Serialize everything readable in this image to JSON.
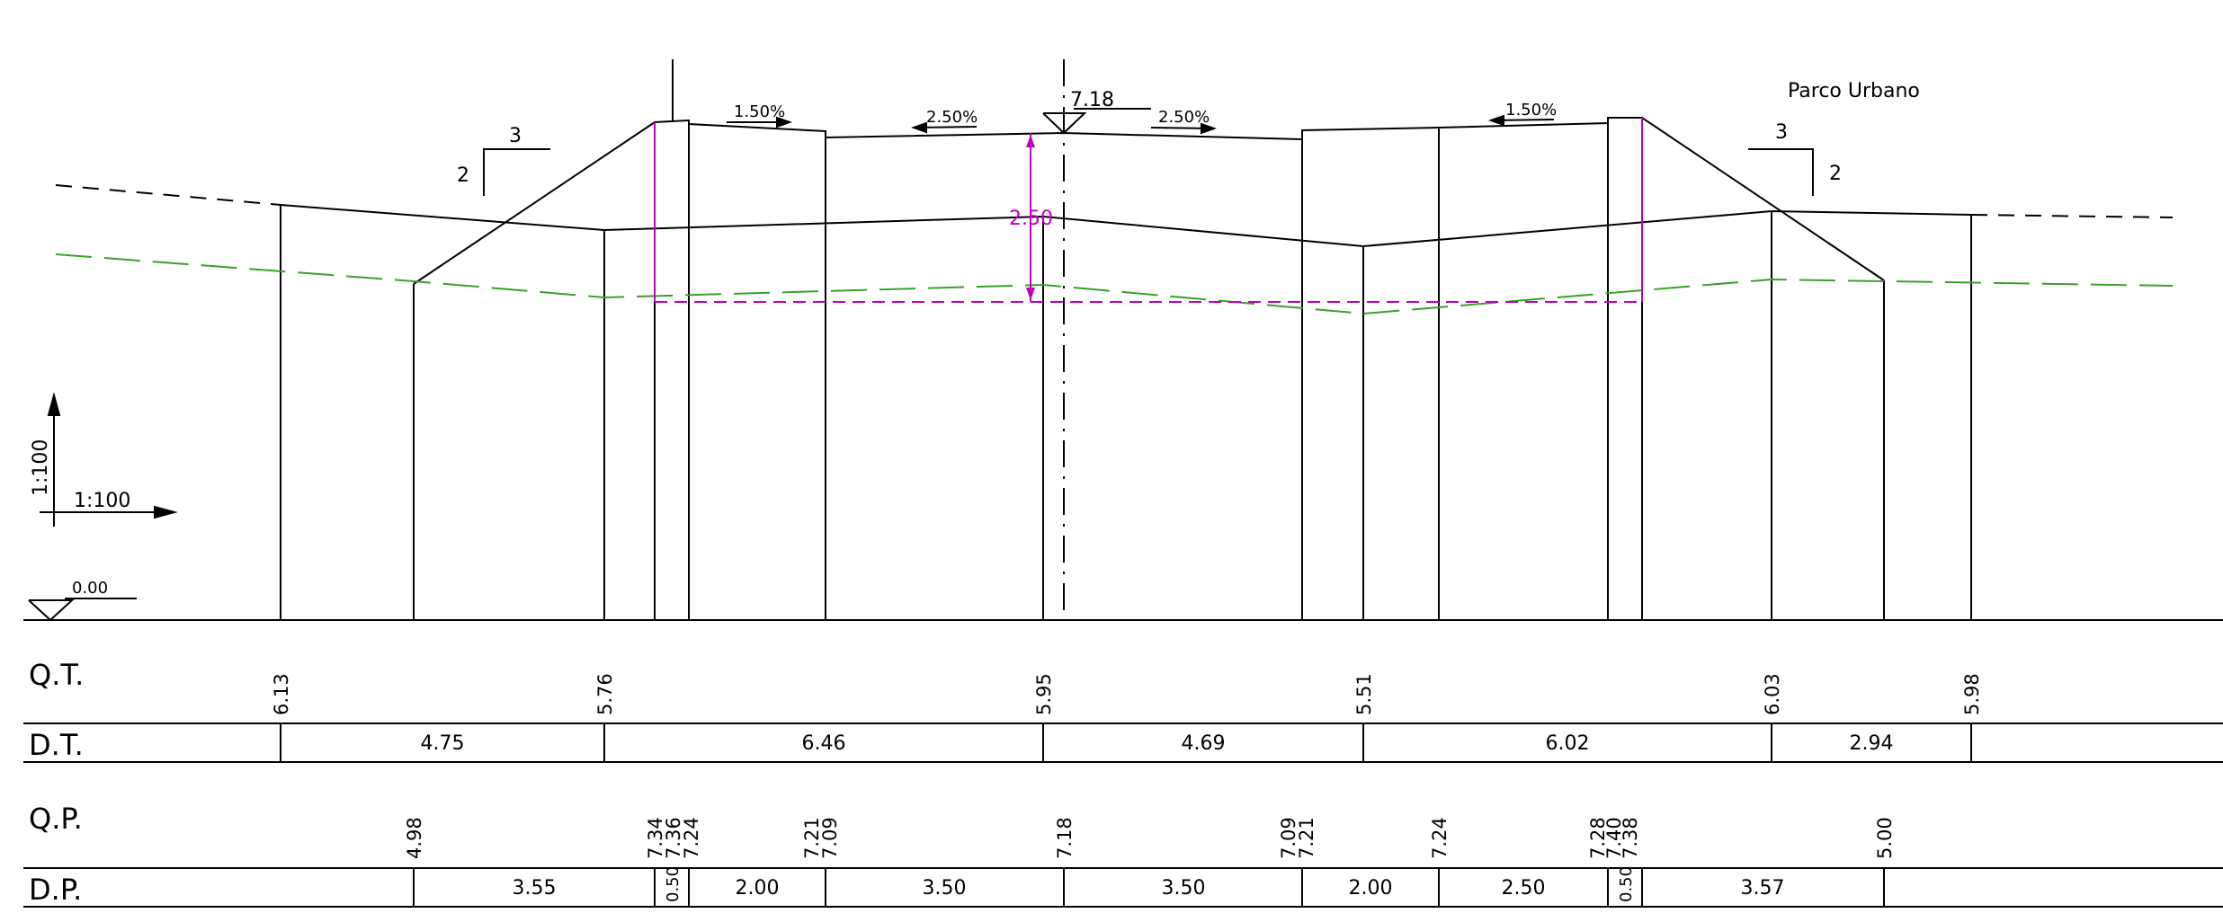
{
  "labels": {
    "park": "Parco Urbano",
    "scale_v": "1:100",
    "scale_h": "1:100",
    "datum": "0.00",
    "axis_elev": "7.18",
    "depth": "2.50",
    "slope_l_outer": "1.50%",
    "slope_l_inner": "2.50%",
    "slope_r_inner": "2.50%",
    "slope_r_outer": "1.50%",
    "emb_left_v": "2",
    "emb_left_h": "3",
    "emb_right_v": "2",
    "emb_right_h": "3"
  },
  "rows": {
    "qt_label": "Q.T.",
    "dt_label": "D.T.",
    "qp_label": "Q.P.",
    "dp_label": "D.P."
  },
  "qt_values": [
    "6.13",
    "5.76",
    "5.95",
    "5.51",
    "6.03",
    "5.98"
  ],
  "dt_values": [
    "4.75",
    "6.46",
    "4.69",
    "6.02",
    "2.94"
  ],
  "qp_values": [
    "4.98",
    "7.34",
    "7.36",
    "7.24",
    "7.21",
    "7.09",
    "7.18",
    "7.09",
    "7.21",
    "7.24",
    "7.28",
    "7.40",
    "7.38",
    "5.00"
  ],
  "dp_values": [
    "3.55",
    "0.50",
    "2.00",
    "3.50",
    "3.50",
    "2.00",
    "2.50",
    "0.50",
    "3.57"
  ],
  "colors": {
    "line": "#000000",
    "groundwater": "#3aa02a",
    "dimension": "#c000c0"
  }
}
